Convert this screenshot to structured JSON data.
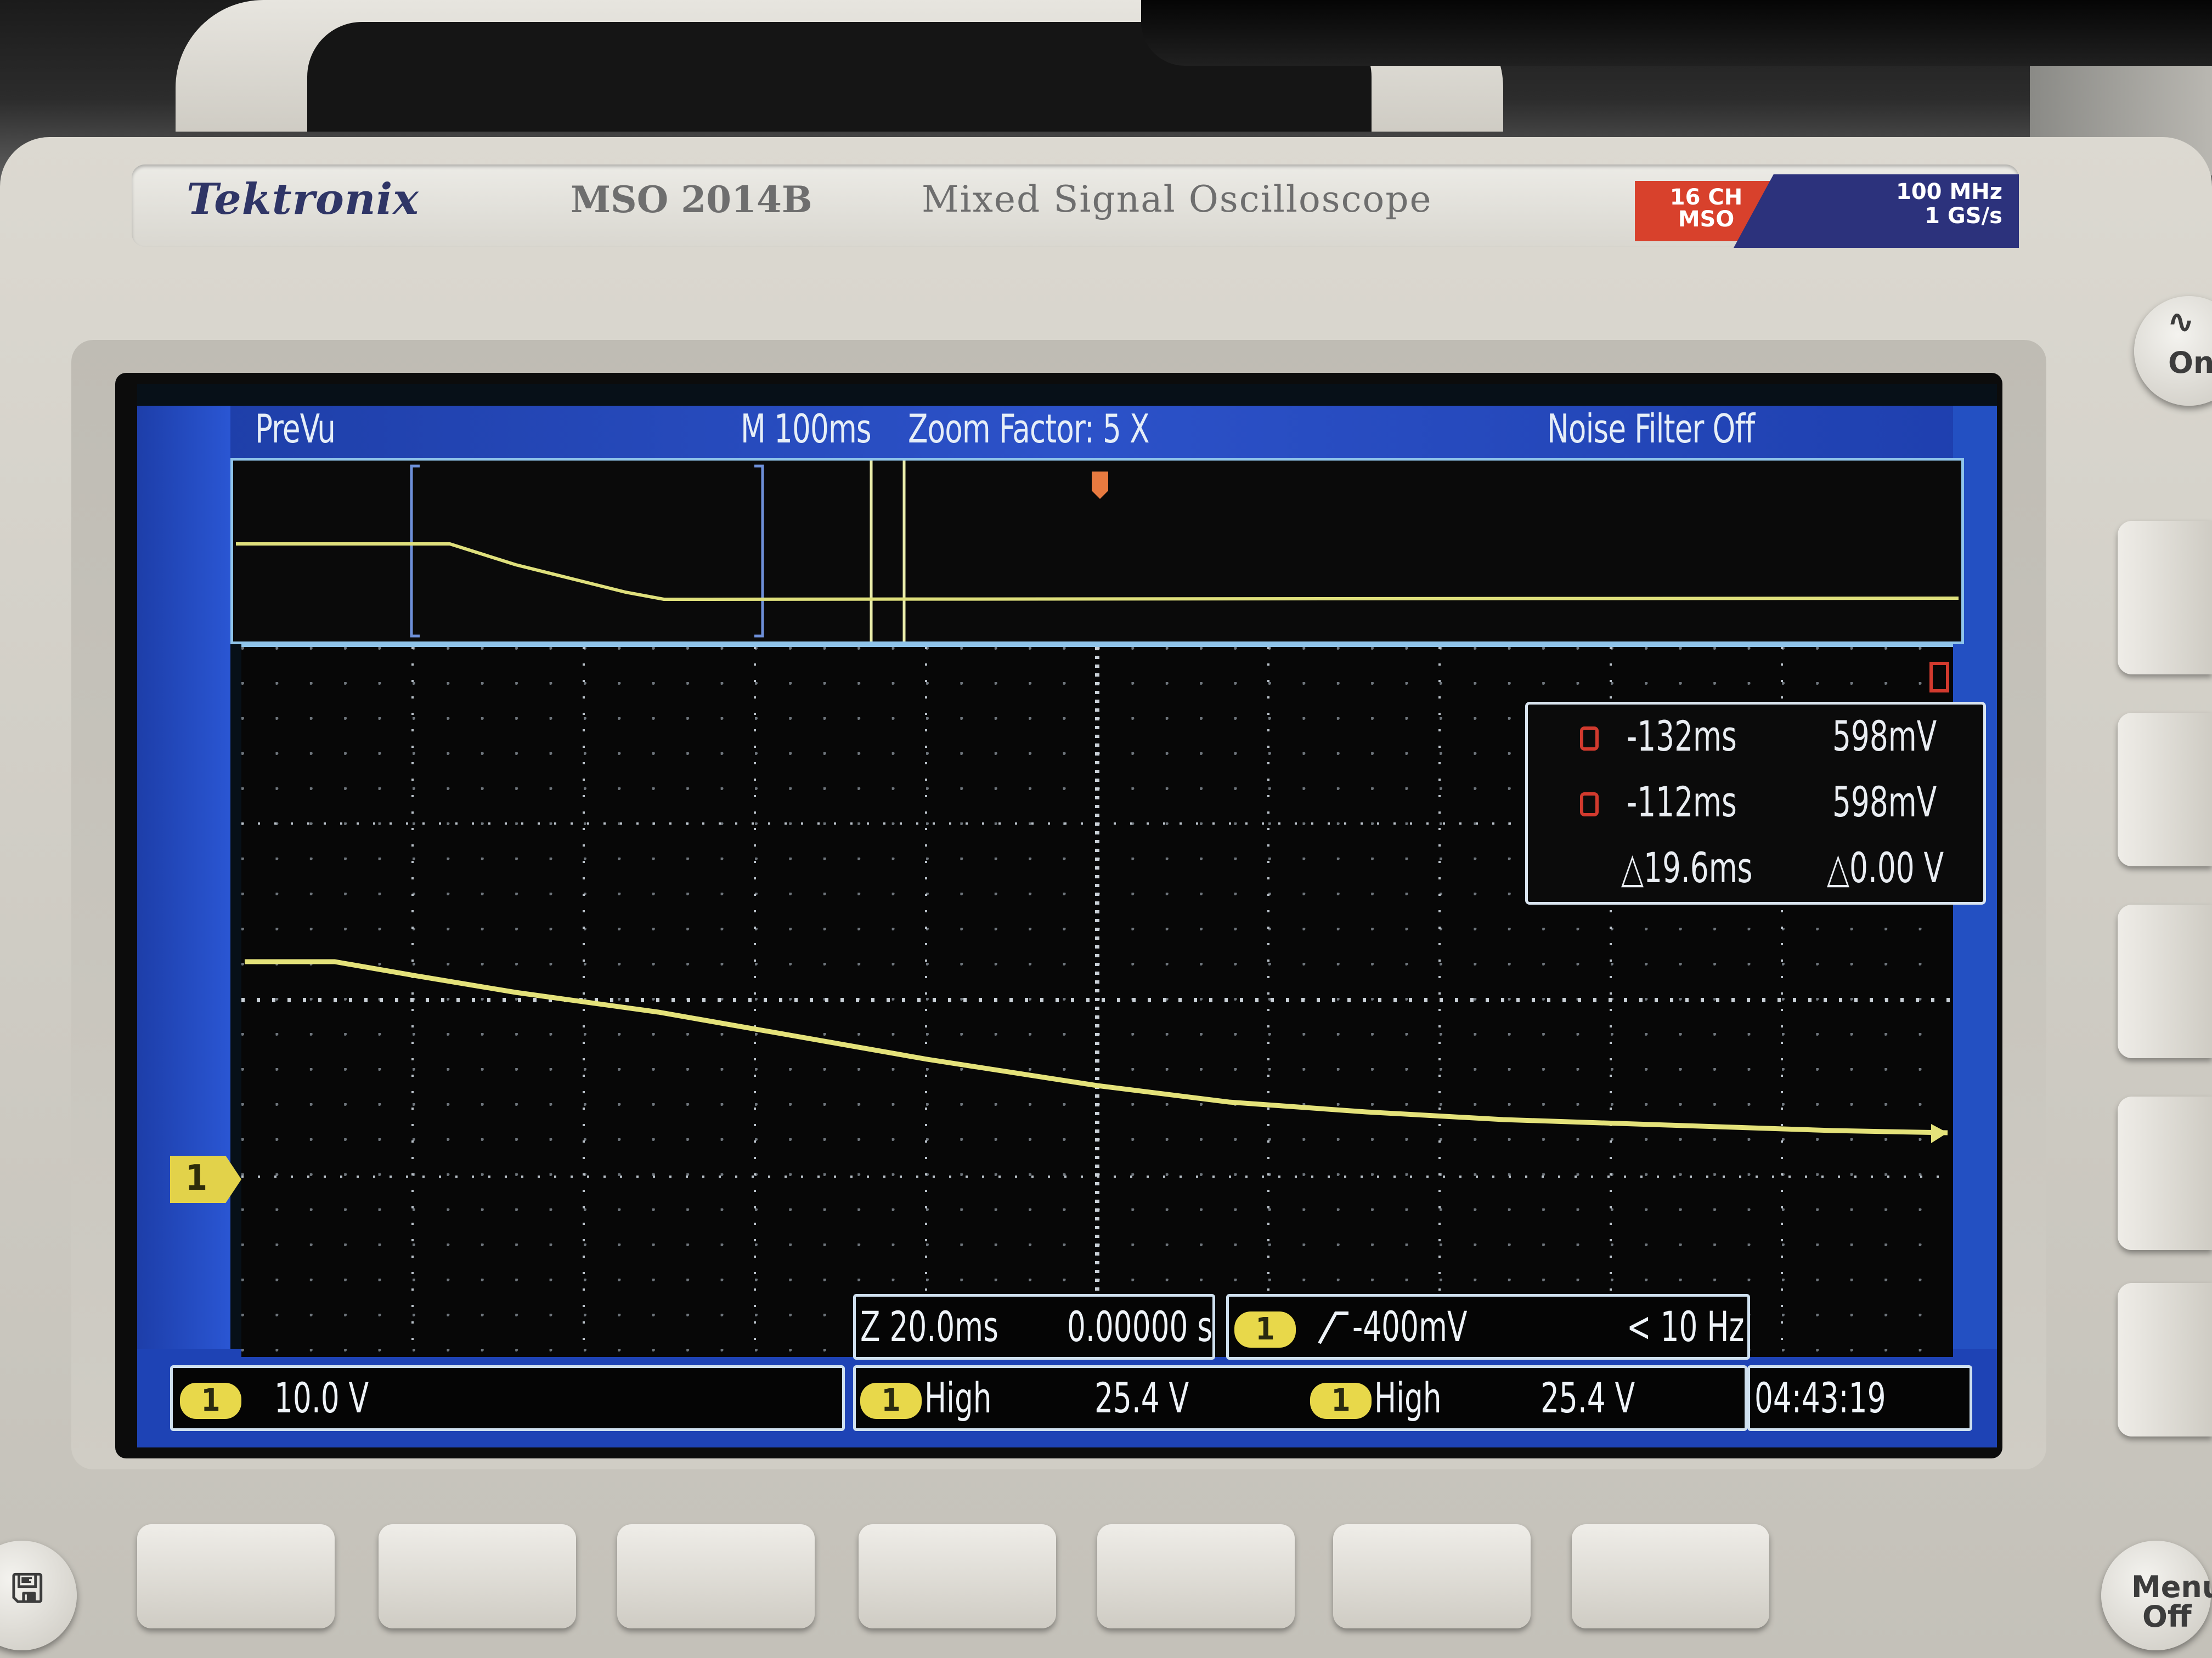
{
  "device": {
    "brand": "Tektronix",
    "model": "MSO 2014B",
    "description": "Mixed Signal Oscilloscope",
    "badge_channels": [
      "16 CH",
      "MSO"
    ],
    "badge_specs": [
      "100 MHz",
      "1 GS/s"
    ]
  },
  "screen": {
    "top_bar": {
      "mode": "PreVu",
      "timebase": "M 100ms",
      "zoom_factor": "Zoom Factor: 5 X",
      "noise_filter": "Noise Filter Off"
    },
    "cursor_readout": {
      "cursor1_time": "-132ms",
      "cursor1_volt": "598mV",
      "cursor2_time": "-112ms",
      "cursor2_volt": "598mV",
      "delta_time": "△19.6ms",
      "delta_volt": "△0.00 V"
    },
    "zoom_box": {
      "scale": "Z 20.0ms",
      "position": "0.00000 s"
    },
    "trigger_box": {
      "channel": "1",
      "level": "-400mV",
      "freq": "< 10 Hz"
    },
    "status": {
      "ch1_label": "1",
      "ch1_scale": "10.0 V",
      "meas1_label": "High",
      "meas1_value": "25.4 V",
      "meas2_label": "High",
      "meas2_value": "25.4 V",
      "clock": "04:43:19"
    },
    "ground_marker": "1"
  },
  "buttons": {
    "menu_off": [
      "Menu",
      "Off"
    ],
    "side_top": [
      "On"
    ]
  },
  "colors": {
    "trace": "#e4e27a",
    "grid": "#d5dbe2",
    "bezel_blue": "#2a52c8",
    "cursor_red": "#d23a2e"
  }
}
